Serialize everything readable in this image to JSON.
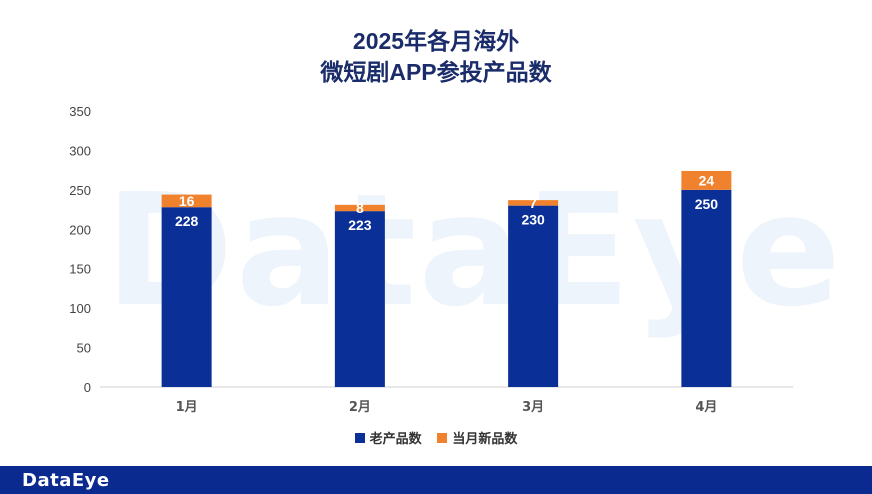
{
  "title_line1": "2025年各月海外",
  "title_line2": "微短剧APP参投产品数",
  "watermark": "DataEye",
  "footer_logo": "DataEye",
  "colors": {
    "old": "#0a2f96",
    "new": "#f0822e",
    "title": "#1b2c6b",
    "footer": "#0b2a8f"
  },
  "chart_data": {
    "type": "bar",
    "stacked": true,
    "categories": [
      "1月",
      "2月",
      "3月",
      "4月"
    ],
    "series": [
      {
        "name": "老产品数",
        "values": [
          228,
          223,
          230,
          250
        ]
      },
      {
        "name": "当月新品数",
        "values": [
          16,
          8,
          7,
          24
        ]
      }
    ],
    "ylim": [
      0,
      350
    ],
    "yticks": [
      0,
      50,
      100,
      150,
      200,
      250,
      300,
      350
    ],
    "ytick_labels": [
      "0",
      "50",
      "100",
      "150",
      "200",
      "250",
      "300",
      "350"
    ],
    "legend_position": "bottom"
  }
}
